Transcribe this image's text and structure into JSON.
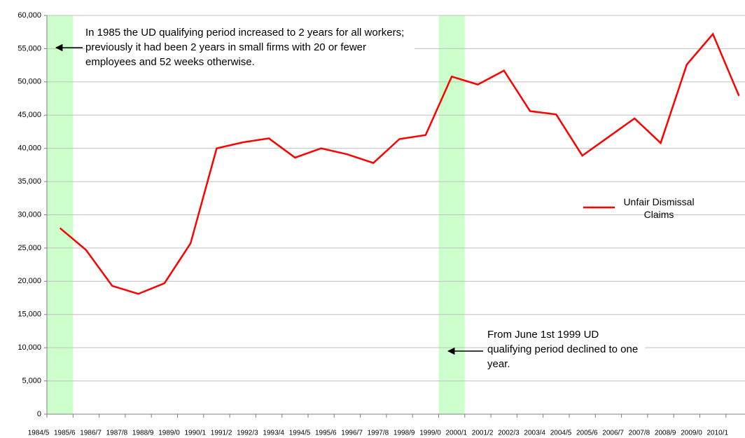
{
  "chart_data": {
    "type": "line",
    "categories": [
      "1984/5",
      "1985/6",
      "1986/7",
      "1987/8",
      "1988/9",
      "1989/0",
      "1990/1",
      "1991/2",
      "1992/3",
      "1993/4",
      "1994/5",
      "1995/6",
      "1996/7",
      "1997/8",
      "1998/9",
      "1999/0",
      "2000/1",
      "2001/2",
      "2002/3",
      "2003/4",
      "2004/5",
      "2005/6",
      "2006/7",
      "2007/8",
      "2008/9",
      "2009/0",
      "2010/1"
    ],
    "series": [
      {
        "name": "Unfair Dismissal Claims",
        "color": "#ff0000",
        "values": [
          28000,
          24700,
          19300,
          18100,
          19700,
          25700,
          40000,
          40900,
          41500,
          38600,
          40000,
          39100,
          37800,
          41400,
          42000,
          50800,
          49600,
          51700,
          45600,
          45100,
          38900,
          41700,
          44500,
          40800,
          52600,
          57200,
          47900
        ]
      }
    ],
    "ylim": [
      0,
      60000
    ],
    "yticks": [
      {
        "value": 0,
        "label": "0"
      },
      {
        "value": 5000,
        "label": "5,000"
      },
      {
        "value": 10000,
        "label": "10,000"
      },
      {
        "value": 15000,
        "label": "15,000"
      },
      {
        "value": 20000,
        "label": "20,000"
      },
      {
        "value": 25000,
        "label": "25,000"
      },
      {
        "value": 30000,
        "label": "30,000"
      },
      {
        "value": 35000,
        "label": "35,000"
      },
      {
        "value": 40000,
        "label": "40,000"
      },
      {
        "value": 45000,
        "label": "45,000"
      },
      {
        "value": 50000,
        "label": "50,000"
      },
      {
        "value": 55000,
        "label": "55,000"
      },
      {
        "value": 60000,
        "label": "60,000"
      }
    ],
    "grid": true,
    "shaded_categories": [
      "1984/5",
      "1999/0"
    ],
    "shade_color": "#ccffcc",
    "annotations": [
      "In 1985 the UD qualifying period increased to 2 years for all workers; previously it had been 2 years in small firms with 20 or fewer employees and 52 weeks otherwise.",
      "From June 1st 1999 UD qualifying period declined to one year."
    ],
    "legend": "right"
  }
}
